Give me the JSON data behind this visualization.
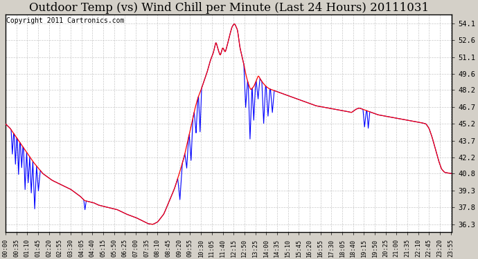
{
  "title": "Outdoor Temp (vs) Wind Chill per Minute (Last 24 Hours) 20111031",
  "copyright_text": "Copyright 2011 Cartronics.com",
  "title_fontsize": 12,
  "copyright_fontsize": 7,
  "yticks": [
    36.3,
    37.8,
    39.3,
    40.8,
    42.2,
    43.7,
    45.2,
    46.7,
    48.2,
    49.6,
    51.1,
    52.6,
    54.1
  ],
  "ylim": [
    35.6,
    54.9
  ],
  "red_line_color": "#ff0000",
  "blue_line_color": "#0000ff",
  "plot_bg_color": "#ffffff",
  "fig_bg_color": "#d4d0c8",
  "grid_color": "#bbbbbb",
  "xtick_positions": [
    0,
    30,
    60,
    90,
    120,
    150,
    180,
    210,
    240,
    270,
    300,
    330,
    360,
    390,
    420,
    450,
    480,
    510,
    540,
    570,
    600,
    630,
    660,
    690,
    720,
    750,
    780,
    810,
    840,
    870,
    900,
    930,
    960,
    990,
    1020,
    1050,
    1080,
    1110,
    1140,
    1170,
    1200,
    1230,
    1260,
    1290,
    1320,
    1350,
    1380,
    1410,
    1439
  ],
  "xtick_labels": [
    "00:00",
    "00:35",
    "01:10",
    "01:45",
    "02:20",
    "02:55",
    "03:30",
    "04:05",
    "04:40",
    "05:15",
    "05:50",
    "06:25",
    "07:00",
    "07:35",
    "08:10",
    "08:45",
    "09:20",
    "09:55",
    "10:30",
    "11:05",
    "11:40",
    "12:15",
    "12:50",
    "13:25",
    "14:00",
    "14:35",
    "15:10",
    "15:45",
    "16:20",
    "16:55",
    "17:30",
    "18:05",
    "18:40",
    "19:15",
    "19:50",
    "20:25",
    "21:00",
    "21:35",
    "22:10",
    "22:45",
    "23:20",
    "23:55",
    "",
    "",
    "",
    "",
    "",
    "",
    ""
  ]
}
